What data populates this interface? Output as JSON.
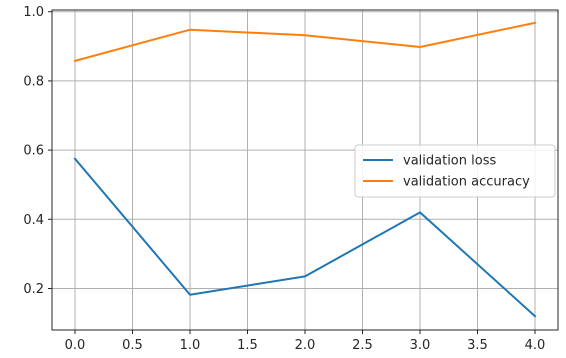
{
  "chart_data": {
    "type": "line",
    "title": "",
    "xlabel": "",
    "ylabel": "",
    "x": [
      0,
      1,
      2,
      3,
      4
    ],
    "xlim": [
      -0.2,
      4.2
    ],
    "ylim": [
      0.08,
      1.005
    ],
    "xticks": [
      "0.0",
      "0.5",
      "1.0",
      "1.5",
      "2.0",
      "2.5",
      "3.0",
      "3.5",
      "4.0"
    ],
    "xtick_values": [
      0,
      0.5,
      1,
      1.5,
      2,
      2.5,
      3,
      3.5,
      4
    ],
    "yticks": [
      "0.2",
      "0.4",
      "0.6",
      "0.8",
      "1.0"
    ],
    "ytick_values": [
      0.2,
      0.4,
      0.6,
      0.8,
      1.0
    ],
    "grid": true,
    "legend_position": "center-right",
    "series": [
      {
        "name": "validation loss",
        "color": "#1f77b4",
        "values": [
          0.575,
          0.182,
          0.235,
          0.42,
          0.12
        ]
      },
      {
        "name": "validation accuracy",
        "color": "#ff7f0e",
        "values": [
          0.858,
          0.948,
          0.932,
          0.898,
          0.968
        ]
      }
    ]
  }
}
